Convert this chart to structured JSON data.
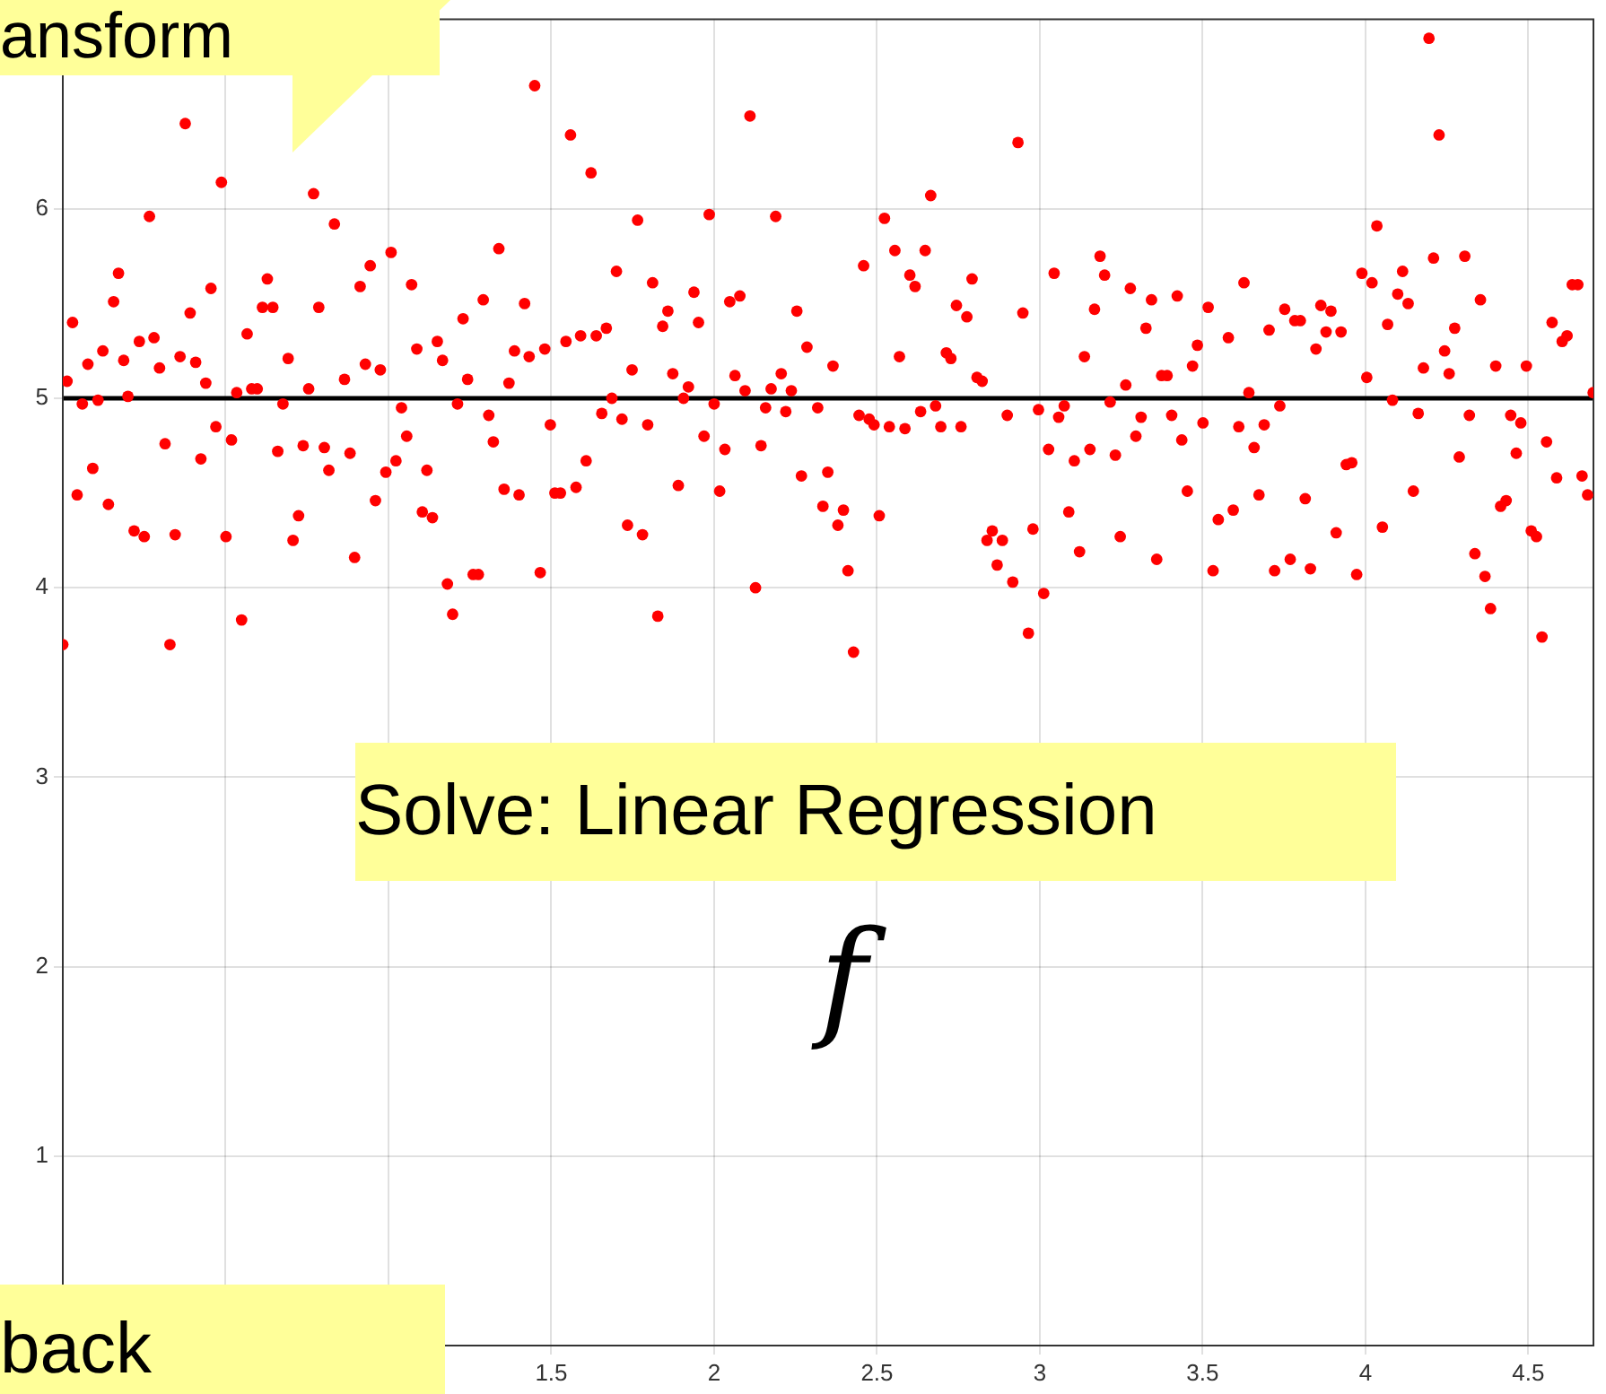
{
  "chart_data": {
    "type": "scatter",
    "xlim": [
      0,
      4.7
    ],
    "ylim": [
      0,
      7
    ],
    "xticks": [
      {
        "value": 0.5,
        "label": null
      },
      {
        "value": 1,
        "label": null
      },
      1.5,
      2,
      2.5,
      3,
      3.5,
      4,
      4.5
    ],
    "yticks": [
      1,
      2,
      3,
      4,
      5,
      6
    ],
    "grid": true,
    "marker": "circle",
    "legend": false,
    "ref_lines": [
      {
        "axis": "y",
        "value": 5,
        "color": "#000000"
      }
    ],
    "annotations": [
      "ansform",
      "Solve: Linear Regression",
      "f",
      "back"
    ],
    "series": [
      {
        "color": "#ff0000",
        "x": [
          0,
          0.013,
          0.03,
          0.044,
          0.06,
          0.077,
          0.092,
          0.108,
          0.123,
          0.14,
          0.156,
          0.171,
          0.187,
          0.2,
          0.219,
          0.235,
          0.25,
          0.266,
          0.28,
          0.297,
          0.314,
          0.329,
          0.345,
          0.36,
          0.376,
          0.391,
          0.408,
          0.424,
          0.439,
          0.455,
          0.47,
          0.487,
          0.501,
          0.518,
          0.534,
          0.549,
          0.566,
          0.58,
          0.597,
          0.613,
          0.628,
          0.645,
          0.66,
          0.676,
          0.692,
          0.707,
          0.724,
          0.738,
          0.755,
          0.77,
          0.786,
          0.803,
          0.817,
          0.834,
          0.865,
          0.882,
          0.896,
          0.913,
          0.929,
          0.944,
          0.96,
          0.975,
          0.992,
          1.008,
          1.023,
          1.04,
          1.056,
          1.071,
          1.087,
          1.104,
          1.118,
          1.135,
          1.15,
          1.166,
          1.181,
          1.197,
          1.212,
          1.229,
          1.243,
          1.26,
          1.276,
          1.291,
          1.308,
          1.322,
          1.339,
          1.355,
          1.37,
          1.387,
          1.401,
          1.418,
          1.432,
          1.449,
          1.466,
          1.48,
          1.497,
          1.511,
          1.528,
          1.545,
          1.559,
          1.576,
          1.59,
          1.607,
          1.622,
          1.638,
          1.655,
          1.669,
          1.686,
          1.7,
          1.717,
          1.734,
          1.748,
          1.765,
          1.78,
          1.796,
          1.811,
          1.827,
          1.842,
          1.858,
          1.873,
          1.89,
          1.906,
          1.921,
          1.938,
          1.952,
          1.969,
          1.985,
          2.0,
          2.017,
          2.033,
          2.048,
          2.064,
          2.079,
          2.095,
          2.11,
          2.127,
          2.144,
          2.158,
          2.175,
          2.189,
          2.206,
          2.22,
          2.237,
          2.254,
          2.268,
          2.285,
          2.318,
          2.334,
          2.349,
          2.365,
          2.38,
          2.397,
          2.411,
          2.428,
          2.445,
          2.459,
          2.476,
          2.491,
          2.507,
          2.523,
          2.538,
          2.555,
          2.569,
          2.586,
          2.601,
          2.617,
          2.634,
          2.648,
          2.665,
          2.68,
          2.696,
          2.713,
          2.727,
          2.744,
          2.758,
          2.776,
          2.792,
          2.807,
          2.823,
          2.838,
          2.854,
          2.869,
          2.885,
          2.9,
          2.917,
          2.933,
          2.948,
          2.965,
          2.979,
          2.996,
          3.012,
          3.027,
          3.044,
          3.058,
          3.075,
          3.089,
          3.106,
          3.122,
          3.137,
          3.154,
          3.168,
          3.185,
          3.199,
          3.216,
          3.232,
          3.247,
          3.264,
          3.278,
          3.295,
          3.311,
          3.326,
          3.343,
          3.359,
          3.374,
          3.391,
          3.405,
          3.422,
          3.436,
          3.453,
          3.469,
          3.484,
          3.501,
          3.517,
          3.532,
          3.548,
          3.56,
          3.579,
          3.594,
          3.611,
          3.627,
          3.642,
          3.658,
          3.673,
          3.689,
          3.704,
          3.721,
          3.737,
          3.752,
          3.769,
          3.783,
          3.8,
          3.815,
          3.831,
          3.848,
          3.863,
          3.879,
          3.894,
          3.91,
          3.925,
          3.941,
          3.958,
          3.973,
          3.989,
          4.004,
          4.02,
          4.035,
          4.052,
          4.068,
          4.083,
          4.099,
          4.114,
          4.131,
          4.147,
          4.162,
          4.178,
          4.195,
          4.209,
          4.226,
          4.243,
          4.257,
          4.274,
          4.288,
          4.305,
          4.319,
          4.336,
          4.353,
          4.367,
          4.384,
          4.4,
          4.415,
          4.432,
          4.446,
          4.463,
          4.477,
          4.494,
          4.509,
          4.525,
          4.542,
          4.556,
          4.573,
          4.587,
          4.604,
          4.619,
          4.635,
          4.652,
          4.665,
          4.682,
          4.699
        ],
        "values": [
          3.7,
          5.09,
          5.4,
          4.49,
          4.97,
          5.18,
          4.63,
          4.99,
          5.25,
          4.44,
          5.51,
          5.66,
          5.2,
          5.01,
          4.3,
          5.3,
          4.27,
          5.96,
          5.32,
          5.16,
          4.76,
          3.7,
          4.28,
          5.22,
          6.45,
          5.45,
          5.19,
          4.68,
          5.08,
          5.58,
          4.85,
          6.14,
          4.27,
          4.78,
          5.03,
          3.83,
          5.34,
          5.05,
          5.05,
          5.48,
          5.63,
          5.48,
          4.72,
          4.97,
          5.21,
          4.25,
          4.38,
          4.75,
          5.05,
          6.08,
          5.48,
          4.74,
          4.62,
          5.92,
          5.1,
          4.71,
          4.16,
          5.59,
          5.18,
          5.7,
          4.46,
          5.15,
          4.61,
          5.77,
          4.67,
          4.95,
          4.8,
          5.6,
          5.26,
          4.4,
          4.62,
          4.37,
          5.3,
          5.2,
          4.02,
          3.86,
          4.97,
          5.42,
          5.1,
          4.07,
          4.07,
          5.52,
          4.91,
          4.77,
          5.79,
          4.52,
          5.08,
          5.25,
          4.49,
          5.5,
          5.22,
          6.65,
          4.08,
          5.26,
          4.86,
          4.5,
          4.5,
          5.3,
          6.39,
          4.53,
          5.33,
          4.67,
          6.19,
          5.33,
          4.92,
          5.37,
          5.0,
          5.67,
          4.89,
          4.33,
          5.15,
          5.94,
          4.28,
          4.86,
          5.61,
          3.85,
          5.38,
          5.46,
          5.13,
          4.54,
          5.0,
          5.06,
          5.56,
          5.4,
          4.8,
          5.97,
          4.97,
          4.51,
          4.73,
          5.51,
          5.12,
          5.54,
          5.04,
          6.49,
          4.0,
          4.75,
          4.95,
          5.05,
          5.96,
          5.13,
          4.93,
          5.04,
          5.46,
          4.59,
          5.27,
          4.95,
          4.43,
          4.61,
          5.17,
          4.33,
          4.41,
          4.09,
          3.66,
          4.91,
          5.7,
          4.89,
          4.86,
          4.38,
          5.95,
          4.85,
          5.78,
          5.22,
          4.84,
          5.65,
          5.59,
          4.93,
          5.78,
          6.07,
          4.96,
          4.85,
          5.24,
          5.21,
          5.49,
          4.85,
          5.43,
          5.63,
          5.11,
          5.09,
          4.25,
          4.3,
          4.12,
          4.25,
          4.91,
          4.03,
          6.35,
          5.45,
          3.76,
          4.31,
          4.94,
          3.97,
          4.73,
          5.66,
          4.9,
          4.96,
          4.4,
          4.67,
          4.19,
          5.22,
          4.73,
          5.47,
          5.75,
          5.65,
          4.98,
          4.7,
          4.27,
          5.07,
          5.58,
          4.8,
          4.9,
          5.37,
          5.52,
          4.15,
          5.12,
          5.12,
          4.91,
          5.54,
          4.78,
          4.51,
          5.17,
          5.28,
          4.87,
          5.48,
          4.09,
          4.36,
          null,
          5.32,
          4.41,
          4.85,
          5.61,
          5.03,
          4.74,
          4.49,
          4.86,
          5.36,
          4.09,
          4.96,
          5.47,
          4.15,
          5.41,
          5.41,
          4.47,
          4.1,
          5.26,
          5.49,
          5.35,
          5.46,
          4.29,
          5.35,
          4.65,
          4.66,
          4.07,
          5.66,
          5.11,
          5.61,
          5.91,
          4.32,
          5.39,
          4.99,
          5.55,
          5.67,
          5.5,
          4.51,
          4.92,
          5.16,
          6.9,
          5.74,
          6.39,
          5.25,
          5.13,
          5.37,
          4.69,
          5.75,
          4.91,
          4.18,
          5.52,
          4.06,
          3.89,
          5.17,
          4.43,
          4.46,
          4.91,
          4.71,
          4.87,
          5.17,
          4.3,
          4.27,
          3.74,
          4.77,
          5.4,
          4.58,
          5.3,
          5.33,
          5.6,
          5.6,
          4.59,
          4.49,
          5.03
        ]
      }
    ]
  }
}
